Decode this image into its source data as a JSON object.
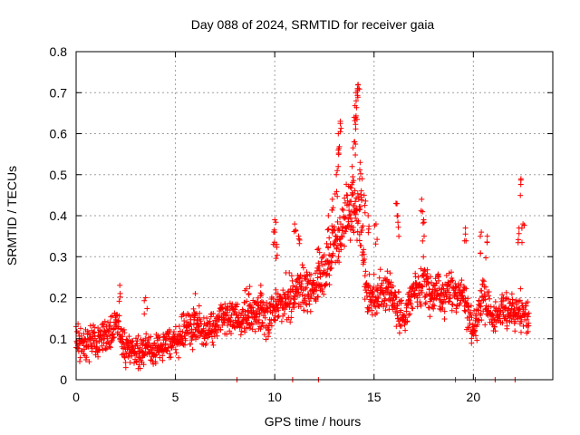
{
  "chart_data": {
    "type": "scatter",
    "title": "Day 088 of 2024, SRMTID for receiver gaia",
    "xlabel": "GPS time / hours",
    "ylabel": "SRMTID / TECUs",
    "xlim": [
      0,
      24
    ],
    "ylim": [
      0,
      0.8
    ],
    "x_ticks": [
      0,
      5,
      10,
      15,
      20
    ],
    "y_ticks": [
      0,
      0.1,
      0.2,
      0.3,
      0.4,
      0.5,
      0.6,
      0.7,
      0.8
    ],
    "x_tick_labels": [
      "0",
      "5",
      "10",
      "15",
      "20"
    ],
    "y_tick_labels": [
      "0",
      "0.1",
      "0.2",
      "0.3",
      "0.4",
      "0.5",
      "0.6",
      "0.7",
      "0.8"
    ],
    "grid": true,
    "marker": "+",
    "marker_color": "#ff0000",
    "x_range_of_data": [
      0,
      22.8
    ],
    "series": [
      {
        "name": "SRMTID",
        "trend": [
          {
            "x": 0.0,
            "y": 0.1
          },
          {
            "x": 0.5,
            "y": 0.08
          },
          {
            "x": 1.0,
            "y": 0.09
          },
          {
            "x": 1.5,
            "y": 0.1
          },
          {
            "x": 2.0,
            "y": 0.14
          },
          {
            "x": 2.5,
            "y": 0.08
          },
          {
            "x": 3.0,
            "y": 0.06
          },
          {
            "x": 3.5,
            "y": 0.07
          },
          {
            "x": 4.0,
            "y": 0.07
          },
          {
            "x": 4.5,
            "y": 0.08
          },
          {
            "x": 5.0,
            "y": 0.1
          },
          {
            "x": 5.5,
            "y": 0.12
          },
          {
            "x": 6.0,
            "y": 0.13
          },
          {
            "x": 6.5,
            "y": 0.12
          },
          {
            "x": 7.0,
            "y": 0.13
          },
          {
            "x": 7.5,
            "y": 0.15
          },
          {
            "x": 8.0,
            "y": 0.15
          },
          {
            "x": 8.5,
            "y": 0.16
          },
          {
            "x": 9.0,
            "y": 0.17
          },
          {
            "x": 9.5,
            "y": 0.14
          },
          {
            "x": 10.0,
            "y": 0.17
          },
          {
            "x": 10.5,
            "y": 0.2
          },
          {
            "x": 11.0,
            "y": 0.21
          },
          {
            "x": 11.5,
            "y": 0.22
          },
          {
            "x": 12.0,
            "y": 0.23
          },
          {
            "x": 12.5,
            "y": 0.26
          },
          {
            "x": 13.0,
            "y": 0.32
          },
          {
            "x": 13.5,
            "y": 0.38
          },
          {
            "x": 14.0,
            "y": 0.42
          },
          {
            "x": 14.3,
            "y": 0.4
          },
          {
            "x": 14.6,
            "y": 0.22
          },
          {
            "x": 15.0,
            "y": 0.2
          },
          {
            "x": 15.5,
            "y": 0.21
          },
          {
            "x": 16.0,
            "y": 0.2
          },
          {
            "x": 16.5,
            "y": 0.14
          },
          {
            "x": 17.0,
            "y": 0.22
          },
          {
            "x": 17.5,
            "y": 0.24
          },
          {
            "x": 18.0,
            "y": 0.21
          },
          {
            "x": 18.5,
            "y": 0.2
          },
          {
            "x": 19.0,
            "y": 0.22
          },
          {
            "x": 19.5,
            "y": 0.2
          },
          {
            "x": 20.0,
            "y": 0.12
          },
          {
            "x": 20.5,
            "y": 0.2
          },
          {
            "x": 21.0,
            "y": 0.15
          },
          {
            "x": 21.5,
            "y": 0.17
          },
          {
            "x": 22.0,
            "y": 0.17
          },
          {
            "x": 22.5,
            "y": 0.16
          },
          {
            "x": 22.8,
            "y": 0.14
          }
        ],
        "spread": 0.045,
        "spikes": [
          {
            "x": 10.0,
            "y": 0.39
          },
          {
            "x": 10.0,
            "y": 0.36
          },
          {
            "x": 10.1,
            "y": 0.33
          },
          {
            "x": 11.0,
            "y": 0.38
          },
          {
            "x": 11.2,
            "y": 0.35
          },
          {
            "x": 12.2,
            "y": 0.32
          },
          {
            "x": 12.7,
            "y": 0.4
          },
          {
            "x": 12.9,
            "y": 0.44
          },
          {
            "x": 13.1,
            "y": 0.5
          },
          {
            "x": 13.2,
            "y": 0.56
          },
          {
            "x": 13.2,
            "y": 0.6
          },
          {
            "x": 13.3,
            "y": 0.63
          },
          {
            "x": 13.8,
            "y": 0.47
          },
          {
            "x": 13.9,
            "y": 0.52
          },
          {
            "x": 14.0,
            "y": 0.58
          },
          {
            "x": 14.0,
            "y": 0.64
          },
          {
            "x": 14.1,
            "y": 0.68
          },
          {
            "x": 14.1,
            "y": 0.7
          },
          {
            "x": 14.2,
            "y": 0.71
          },
          {
            "x": 14.2,
            "y": 0.72
          },
          {
            "x": 14.3,
            "y": 0.53
          },
          {
            "x": 14.4,
            "y": 0.49
          },
          {
            "x": 14.5,
            "y": 0.45
          },
          {
            "x": 14.7,
            "y": 0.4
          },
          {
            "x": 15.1,
            "y": 0.38
          },
          {
            "x": 16.1,
            "y": 0.43
          },
          {
            "x": 16.2,
            "y": 0.4
          },
          {
            "x": 17.4,
            "y": 0.44
          },
          {
            "x": 17.5,
            "y": 0.39
          },
          {
            "x": 19.6,
            "y": 0.37
          },
          {
            "x": 20.4,
            "y": 0.36
          },
          {
            "x": 20.7,
            "y": 0.35
          },
          {
            "x": 22.3,
            "y": 0.37
          },
          {
            "x": 22.4,
            "y": 0.49
          },
          {
            "x": 22.5,
            "y": 0.38
          },
          {
            "x": 2.2,
            "y": 0.23
          },
          {
            "x": 3.5,
            "y": 0.2
          },
          {
            "x": 6.0,
            "y": 0.21
          },
          {
            "x": 8.7,
            "y": 0.21
          },
          {
            "x": 9.3,
            "y": 0.23
          }
        ],
        "baseline_points": [
          8.1,
          10.9,
          12.2,
          19.1,
          20.1,
          21.1,
          22.1
        ]
      }
    ]
  }
}
